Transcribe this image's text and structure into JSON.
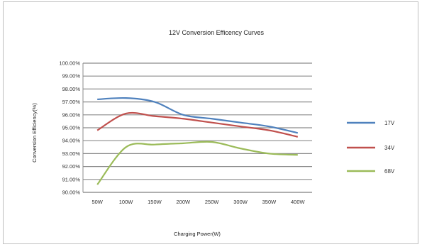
{
  "chart_data": {
    "type": "line",
    "title": "12V Conversion Efficency Curves",
    "xlabel": "Charging Power(W)",
    "ylabel": "Conversion Efficiency(%)",
    "categories": [
      "50W",
      "100W",
      "150W",
      "200W",
      "250W",
      "300W",
      "350W",
      "400W"
    ],
    "ylim": [
      90,
      100
    ],
    "yticks": [
      "90.00%",
      "91.00%",
      "92.00%",
      "93.00%",
      "94.00%",
      "95.00%",
      "96.00%",
      "97.00%",
      "98.00%",
      "99.00%",
      "100.00%"
    ],
    "grid": true,
    "legend": "right",
    "series": [
      {
        "name": "17V",
        "color": "#4f81bd",
        "values": [
          97.2,
          97.3,
          97.0,
          96.0,
          95.7,
          95.4,
          95.1,
          94.6
        ]
      },
      {
        "name": "34V",
        "color": "#c0504d",
        "values": [
          94.8,
          96.1,
          95.9,
          95.7,
          95.4,
          95.1,
          94.8,
          94.3
        ]
      },
      {
        "name": "68V",
        "color": "#9bbb59",
        "values": [
          90.6,
          93.5,
          93.7,
          93.8,
          93.9,
          93.4,
          93.0,
          92.9
        ]
      }
    ]
  }
}
